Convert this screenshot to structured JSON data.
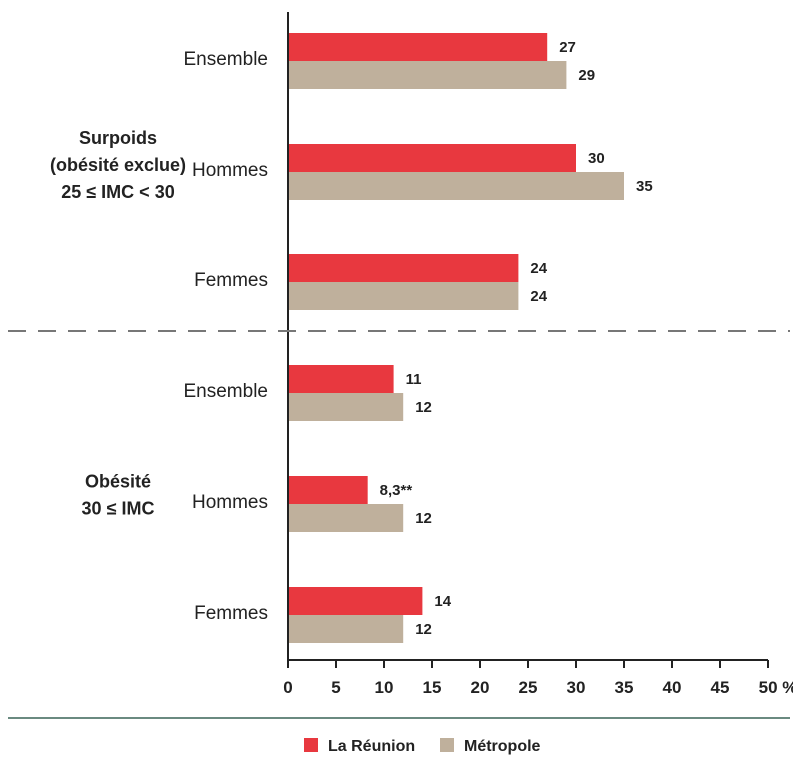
{
  "chart_data": {
    "type": "bar",
    "orientation": "horizontal",
    "groups": [
      {
        "label_lines": [
          "Surpoids",
          "(obésité exclue)",
          "25 ≤ IMC < 30"
        ],
        "categories": [
          "Ensemble",
          "Hommes",
          "Femmes"
        ]
      },
      {
        "label_lines": [
          "Obésité",
          "30 ≤ IMC"
        ],
        "categories": [
          "Ensemble",
          "Hommes",
          "Femmes"
        ]
      }
    ],
    "series": [
      {
        "name": "La Réunion",
        "color": "#e8383f",
        "values": [
          27,
          30,
          24,
          11,
          8.3,
          14
        ],
        "labels": [
          "27",
          "30",
          "24",
          "11",
          "8,3**",
          "14"
        ]
      },
      {
        "name": "Métropole",
        "color": "#bfb09c",
        "values": [
          29,
          35,
          24,
          12,
          12,
          12
        ],
        "labels": [
          "29",
          "35",
          "24",
          "12",
          "12",
          "12"
        ]
      }
    ],
    "xlim": [
      0,
      50
    ],
    "xticks": [
      0,
      5,
      10,
      15,
      20,
      25,
      30,
      35,
      40,
      45,
      50
    ],
    "xtick_labels": [
      "0",
      "5",
      "10",
      "15",
      "20",
      "25",
      "30",
      "35",
      "40",
      "45",
      "50 %"
    ],
    "grid": false,
    "group_separator": "dashed",
    "legend_position": "bottom-center"
  }
}
